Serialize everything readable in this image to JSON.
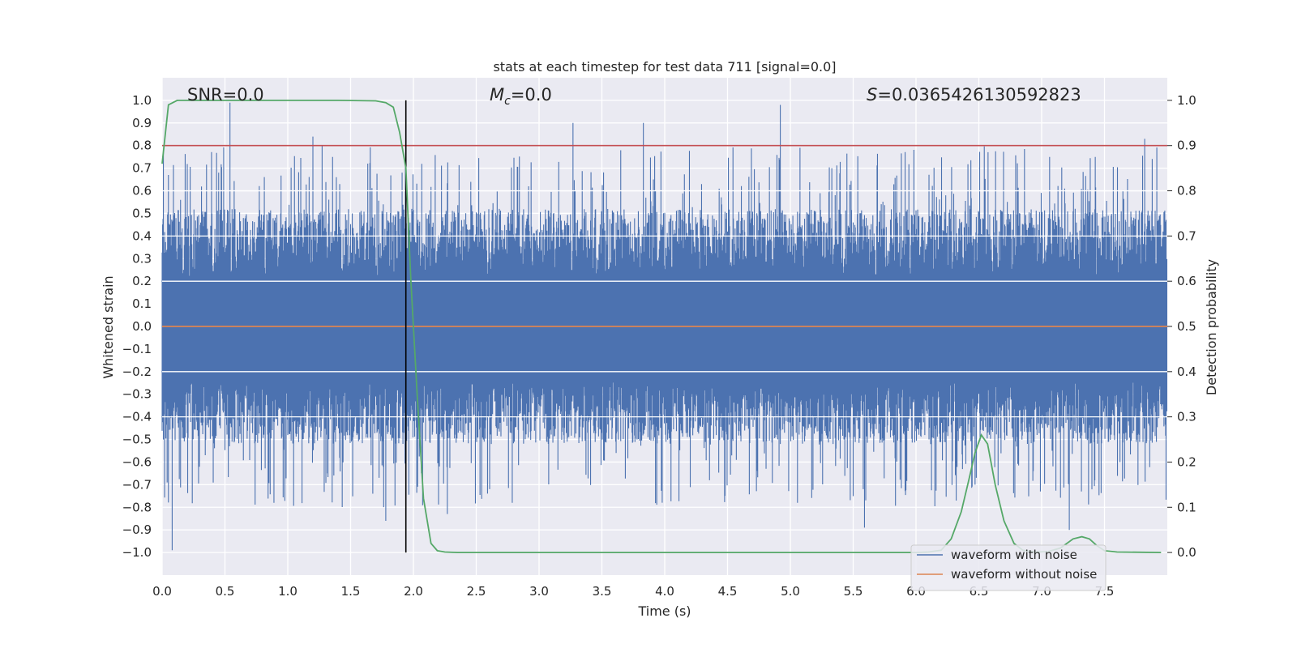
{
  "chart_data": {
    "type": "line",
    "title": "stats at each timestep for test data 711 [signal=0.0]",
    "xlabel": "Time (s)",
    "ylabel": "Whitened strain",
    "y2label": "Detection probability",
    "xlim": [
      0.0,
      8.0
    ],
    "ylim": [
      -1.1,
      1.1
    ],
    "y2lim": [
      -0.05,
      1.05
    ],
    "xticks": [
      "0.0",
      "0.5",
      "1.0",
      "1.5",
      "2.0",
      "2.5",
      "3.0",
      "3.5",
      "4.0",
      "4.5",
      "5.0",
      "5.5",
      "6.0",
      "6.5",
      "7.0",
      "7.5"
    ],
    "yticks": [
      "1.0",
      "0.9",
      "0.8",
      "0.7",
      "0.6",
      "0.5",
      "0.4",
      "0.3",
      "0.2",
      "0.1",
      "0.0",
      "-0.1",
      "-0.2",
      "-0.3",
      "-0.4",
      "-0.5",
      "-0.6",
      "-0.7",
      "-0.8",
      "-0.9",
      "-1.0"
    ],
    "y2ticks": [
      "1.0",
      "0.9",
      "0.8",
      "0.7",
      "0.6",
      "0.5",
      "0.4",
      "0.3",
      "0.2",
      "0.1",
      "0.0"
    ],
    "grid": true,
    "legend_position": "bottom-right",
    "annotations": {
      "snr": "SNR=0.0",
      "mc_symbol": "M",
      "mc_sub": "c",
      "mc_value": "=0.0",
      "s_symbol": "S",
      "s_value": "=0.0365426130592823"
    },
    "series": [
      {
        "name": "waveform with noise",
        "color": "#4c72b0",
        "envelope": "dense noise, typical range about -0.5 to 0.6, peaks near 0.99 and -0.99",
        "peaks": [
          {
            "x": 0.05,
            "y": 0.67
          },
          {
            "x": 0.04,
            "y": -0.69
          },
          {
            "x": 0.08,
            "y": -0.99
          },
          {
            "x": 0.54,
            "y": 0.99
          },
          {
            "x": 1.2,
            "y": 0.84
          },
          {
            "x": 1.78,
            "y": -0.86
          },
          {
            "x": 3.27,
            "y": 0.9
          },
          {
            "x": 3.83,
            "y": 0.9
          },
          {
            "x": 4.92,
            "y": 0.98
          },
          {
            "x": 5.59,
            "y": -0.89
          },
          {
            "x": 6.47,
            "y": -0.7
          },
          {
            "x": 7.22,
            "y": -0.9
          },
          {
            "x": 7.82,
            "y": 0.83
          },
          {
            "x": 5.33,
            "y": 0.7
          },
          {
            "x": 2.27,
            "y": -0.83
          }
        ]
      },
      {
        "name": "waveform without noise",
        "color": "#dd8452",
        "x": [
          0.0,
          8.0
        ],
        "y": [
          0.0,
          0.0
        ]
      },
      {
        "name": "detection probability",
        "color": "#55a868",
        "axis": "right",
        "x": [
          0.0,
          0.05,
          0.12,
          0.3,
          0.6,
          1.0,
          1.4,
          1.7,
          1.78,
          1.84,
          1.89,
          1.94,
          1.98,
          2.03,
          2.08,
          2.14,
          2.19,
          2.25,
          2.35,
          3.0,
          4.0,
          5.0,
          6.0,
          6.1,
          6.2,
          6.28,
          6.36,
          6.42,
          6.47,
          6.52,
          6.57,
          6.63,
          6.7,
          6.78,
          6.85,
          6.95,
          7.05,
          7.15,
          7.25,
          7.32,
          7.38,
          7.44,
          7.5,
          7.6,
          7.95
        ],
        "y": [
          0.86,
          0.99,
          1.0,
          1.0,
          1.0,
          1.0,
          1.0,
          0.999,
          0.995,
          0.985,
          0.93,
          0.85,
          0.6,
          0.35,
          0.12,
          0.02,
          0.004,
          0.001,
          0.0,
          0.0,
          0.0,
          0.0,
          0.0,
          0.001,
          0.005,
          0.03,
          0.09,
          0.16,
          0.22,
          0.26,
          0.24,
          0.15,
          0.07,
          0.02,
          0.005,
          0.001,
          0.002,
          0.01,
          0.03,
          0.035,
          0.03,
          0.015,
          0.004,
          0.001,
          0.0
        ]
      }
    ],
    "hlines": [
      {
        "name": "threshold",
        "axis": "right",
        "y": 0.9,
        "color": "#c44e52"
      }
    ],
    "vlines": [
      {
        "name": "marker",
        "x": 1.94,
        "color": "#000000"
      }
    ]
  }
}
